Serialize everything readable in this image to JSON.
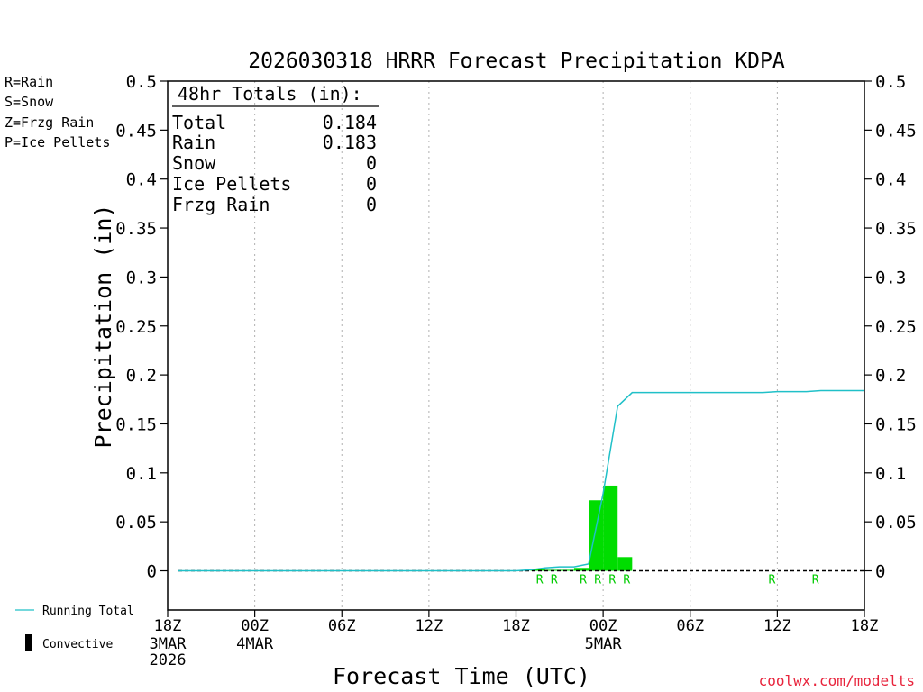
{
  "chart_data": {
    "type": "bar",
    "title": "2026030318 HRRR Forecast Precipitation KDPA",
    "ylabel": "Precipitation (in)",
    "xlabel": "Forecast Time (UTC)",
    "ylim": [
      -0.04,
      0.5
    ],
    "xlim_hours": [
      0,
      48
    ],
    "y_ticks": [
      0,
      0.05,
      0.1,
      0.15,
      0.2,
      0.25,
      0.3,
      0.35,
      0.4,
      0.45,
      0.5
    ],
    "y_tick_labels": [
      "0",
      "0.05",
      "0.1",
      "0.15",
      "0.2",
      "0.25",
      "0.3",
      "0.35",
      "0.4",
      "0.45",
      "0.5"
    ],
    "x_ticks": [
      {
        "hour": 0,
        "label": "18Z",
        "sub1": "3MAR",
        "sub2": "2026"
      },
      {
        "hour": 6,
        "label": "00Z",
        "sub1": "4MAR",
        "sub2": ""
      },
      {
        "hour": 12,
        "label": "06Z",
        "sub1": "",
        "sub2": ""
      },
      {
        "hour": 18,
        "label": "12Z",
        "sub1": "",
        "sub2": ""
      },
      {
        "hour": 24,
        "label": "18Z",
        "sub1": "",
        "sub2": ""
      },
      {
        "hour": 30,
        "label": "00Z",
        "sub1": "5MAR",
        "sub2": ""
      },
      {
        "hour": 36,
        "label": "06Z",
        "sub1": "",
        "sub2": ""
      },
      {
        "hour": 42,
        "label": "12Z",
        "sub1": "",
        "sub2": ""
      },
      {
        "hour": 48,
        "label": "18Z",
        "sub1": "",
        "sub2": ""
      }
    ],
    "bars": {
      "name": "Rain",
      "color": "#00dd00",
      "hours": [
        26,
        27,
        28,
        29,
        30,
        31,
        32
      ],
      "values": [
        0.002,
        0.001,
        0.001,
        0.003,
        0.072,
        0.087,
        0.014
      ]
    },
    "running_total": {
      "name": "Running Total",
      "color": "#20c0c8",
      "hours": [
        0,
        24,
        25,
        26,
        27,
        28,
        29,
        30,
        31,
        32,
        33,
        36,
        40,
        41,
        42,
        43,
        44,
        45,
        46,
        47,
        48
      ],
      "values": [
        0,
        0,
        0.001,
        0.003,
        0.004,
        0.004,
        0.007,
        0.079,
        0.168,
        0.182,
        0.182,
        0.182,
        0.182,
        0.182,
        0.183,
        0.183,
        0.183,
        0.184,
        0.184,
        0.184,
        0.184
      ]
    },
    "ptype_markers": {
      "hours": [
        26,
        27,
        29,
        30,
        31,
        32,
        42,
        45
      ],
      "labels": [
        "R",
        "R",
        "R",
        "R",
        "R",
        "R",
        "R",
        "R"
      ],
      "color": "#00cc00"
    },
    "totals_box": {
      "heading": "48hr Totals (in):",
      "rows": [
        {
          "label": "Total",
          "value": "0.184"
        },
        {
          "label": "Rain",
          "value": "0.183"
        },
        {
          "label": "Snow",
          "value": "0"
        },
        {
          "label": "Ice Pellets",
          "value": "0"
        },
        {
          "label": "Frzg Rain",
          "value": "0"
        }
      ]
    },
    "ptype_legend": [
      {
        "text": "R=Rain",
        "color": "#22dd22"
      },
      {
        "text": "S=Snow",
        "color": "#3a3ae8"
      },
      {
        "text": "Z=Frzg Rain",
        "color": "#ee9a40"
      },
      {
        "text": "P=Ice Pellets",
        "color": "#ee22aa"
      }
    ],
    "series_legend": {
      "running_total": "Running Total",
      "convective": "Convective"
    }
  },
  "credit": "coolwx.com/modelts"
}
